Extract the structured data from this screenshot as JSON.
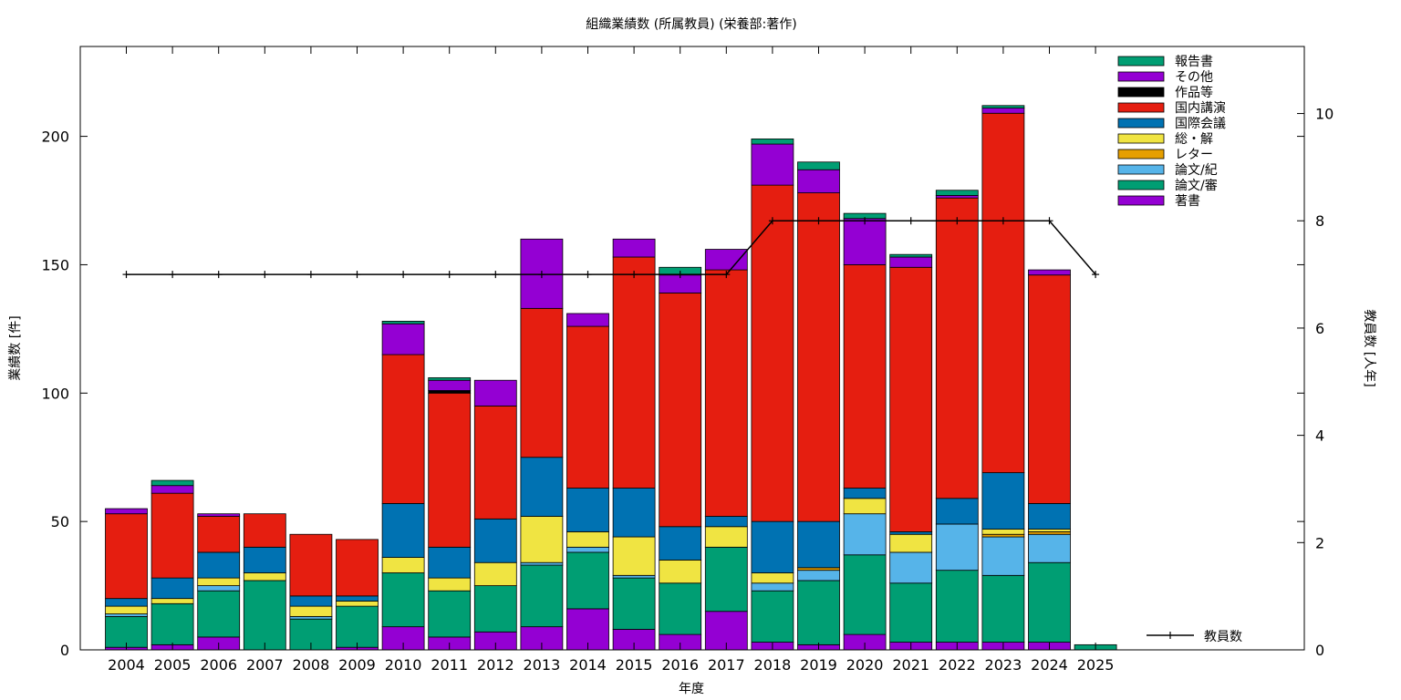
{
  "chart_data": {
    "type": "bar",
    "stacked": true,
    "title": "組織業績数 (所属教員) (栄養部:著作)",
    "xlabel": "年度",
    "ylabel": "業績数 [件]",
    "y2label": "教員数 [人年]",
    "ylim": [
      0,
      235
    ],
    "y2lim": [
      0,
      11.25
    ],
    "yticks": [
      0,
      50,
      100,
      150,
      200
    ],
    "y2ticks": [
      0,
      2,
      4,
      6,
      8,
      10
    ],
    "legend_position": "top-right",
    "categories": [
      "2004",
      "2005",
      "2006",
      "2007",
      "2008",
      "2009",
      "2010",
      "2011",
      "2012",
      "2013",
      "2014",
      "2015",
      "2016",
      "2017",
      "2018",
      "2019",
      "2020",
      "2021",
      "2022",
      "2023",
      "2024",
      "2025"
    ],
    "series": [
      {
        "name": "著書",
        "color": "#9400d3",
        "values": [
          1,
          2,
          5,
          0,
          0,
          1,
          9,
          5,
          7,
          9,
          16,
          8,
          6,
          15,
          3,
          2,
          6,
          3,
          3,
          3,
          3,
          0
        ]
      },
      {
        "name": "論文/審",
        "color": "#009e73",
        "values": [
          12,
          16,
          18,
          27,
          12,
          16,
          21,
          18,
          18,
          24,
          22,
          20,
          20,
          25,
          20,
          25,
          31,
          23,
          28,
          26,
          31,
          2
        ]
      },
      {
        "name": "論文/紀",
        "color": "#56b4e9",
        "values": [
          1,
          0,
          2,
          0,
          1,
          0,
          0,
          0,
          0,
          1,
          2,
          1,
          0,
          0,
          3,
          4,
          16,
          12,
          18,
          15,
          11,
          0
        ]
      },
      {
        "name": "レター",
        "color": "#e69f00",
        "values": [
          0,
          0,
          0,
          0,
          0,
          0,
          0,
          0,
          0,
          0,
          0,
          0,
          0,
          0,
          0,
          1,
          0,
          0,
          0,
          1,
          1,
          0
        ]
      },
      {
        "name": "総・解",
        "color": "#f0e442",
        "values": [
          3,
          2,
          3,
          3,
          4,
          2,
          6,
          5,
          9,
          18,
          6,
          15,
          9,
          8,
          4,
          0,
          6,
          7,
          0,
          2,
          1,
          0
        ]
      },
      {
        "name": "国際会議",
        "color": "#0072b2",
        "values": [
          3,
          8,
          10,
          10,
          4,
          2,
          21,
          12,
          17,
          23,
          17,
          19,
          13,
          4,
          20,
          18,
          4,
          1,
          10,
          22,
          10,
          0
        ]
      },
      {
        "name": "国内講演",
        "color": "#e51e10",
        "values": [
          33,
          33,
          14,
          13,
          24,
          22,
          58,
          60,
          44,
          58,
          63,
          90,
          91,
          96,
          131,
          128,
          87,
          103,
          117,
          140,
          89,
          0
        ]
      },
      {
        "name": "作品等",
        "color": "#000000",
        "values": [
          0,
          0,
          0,
          0,
          0,
          0,
          0,
          1,
          0,
          0,
          0,
          0,
          0,
          0,
          0,
          0,
          0,
          0,
          0,
          0,
          0,
          0
        ]
      },
      {
        "name": "その他",
        "color": "#9400d3",
        "values": [
          2,
          3,
          1,
          0,
          0,
          0,
          12,
          4,
          10,
          27,
          5,
          7,
          7,
          8,
          16,
          9,
          18,
          4,
          1,
          2,
          2,
          0
        ]
      },
      {
        "name": "報告書",
        "color": "#009e73",
        "values": [
          0,
          2,
          0,
          0,
          0,
          0,
          1,
          1,
          0,
          0,
          0,
          0,
          3,
          0,
          2,
          3,
          2,
          1,
          2,
          1,
          0,
          0
        ]
      }
    ],
    "line": {
      "name": "教員数",
      "axis": "y2",
      "color": "#000000",
      "values": [
        7,
        7,
        7,
        7,
        7,
        7,
        7,
        7,
        7,
        7,
        7,
        7,
        7,
        7,
        8,
        8,
        8,
        8,
        8,
        8,
        8,
        7
      ]
    },
    "legend_order": [
      "報告書",
      "その他",
      "作品等",
      "国内講演",
      "国際会議",
      "総・解",
      "レター",
      "論文/紀",
      "論文/審",
      "著書"
    ]
  }
}
